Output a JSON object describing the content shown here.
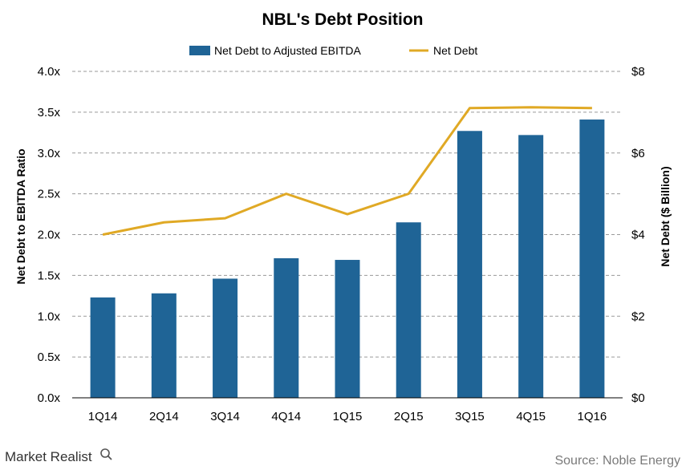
{
  "chart_data": {
    "type": "bar",
    "title": "NBL's Debt Position",
    "categories": [
      "1Q14",
      "2Q14",
      "3Q14",
      "4Q14",
      "1Q15",
      "2Q15",
      "3Q15",
      "4Q15",
      "1Q16"
    ],
    "series": [
      {
        "name": "Net Debt to Adjusted EBITDA",
        "type": "bar",
        "axis": "left",
        "color": "#1f6496",
        "values": [
          1.23,
          1.28,
          1.46,
          1.71,
          1.69,
          2.15,
          3.27,
          3.22,
          3.41
        ]
      },
      {
        "name": "Net Debt",
        "type": "line",
        "axis": "right",
        "color": "#e0a925",
        "values": [
          4.0,
          4.3,
          4.4,
          5.0,
          4.5,
          5.0,
          7.1,
          7.12,
          7.1
        ]
      }
    ],
    "ylabel": "Net Debt to EBITDA Ratio",
    "y2label": "Net Debt ($ Billion)",
    "ylim": [
      0,
      4
    ],
    "y2lim": [
      0,
      8
    ],
    "yticks": [
      "0.0x",
      "0.5x",
      "1.0x",
      "1.5x",
      "2.0x",
      "2.5x",
      "3.0x",
      "3.5x",
      "4.0x"
    ],
    "y2ticks": [
      "$0",
      "$2",
      "$4",
      "$6",
      "$8"
    ],
    "grid": true,
    "legend_position": "top"
  },
  "footer": {
    "brand": "Market Realist",
    "source": "Source:  Noble Energy"
  }
}
